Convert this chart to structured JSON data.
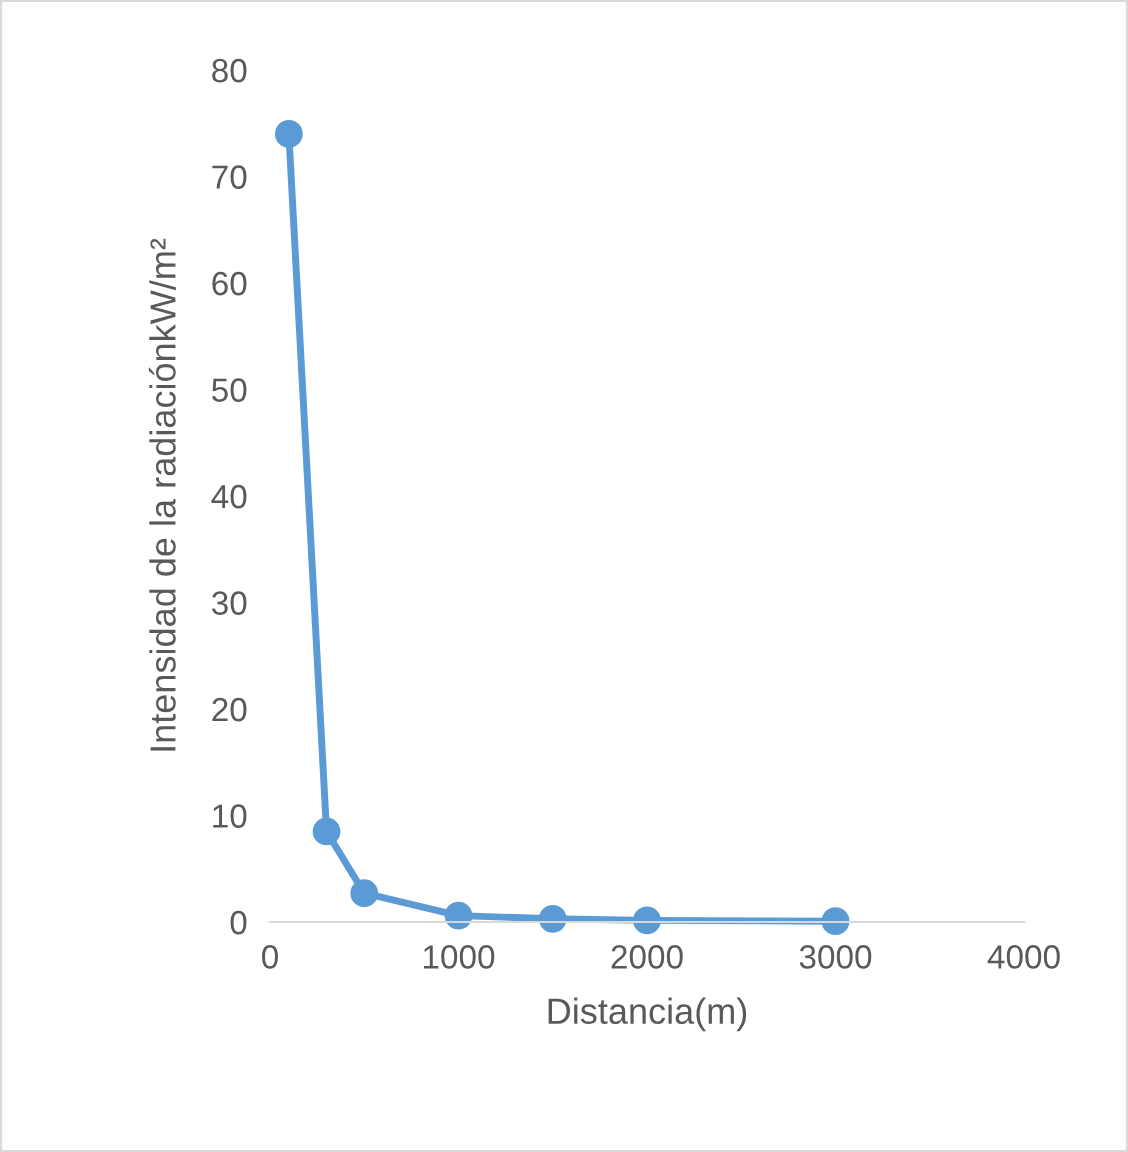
{
  "chart_data": {
    "type": "line",
    "xlabel": "Distancia(m)",
    "ylabel": "Intensidad de la radiaciónkW/m²",
    "x": [
      100,
      300,
      500,
      1000,
      1500,
      2000,
      3000
    ],
    "series": [
      {
        "color": "#5b9bd5",
        "values": [
          74,
          8.5,
          2.7,
          0.6,
          0.3,
          0.15,
          0.08
        ]
      }
    ],
    "xlim": [
      0,
      4000
    ],
    "xticks": [
      0,
      1000,
      2000,
      3000,
      4000
    ],
    "ylim": [
      0,
      80
    ],
    "yticks": [
      0,
      10,
      20,
      30,
      40,
      50,
      60,
      70,
      80
    ],
    "grid": false,
    "legend": false,
    "marker": "circle",
    "line_style": "solid"
  }
}
